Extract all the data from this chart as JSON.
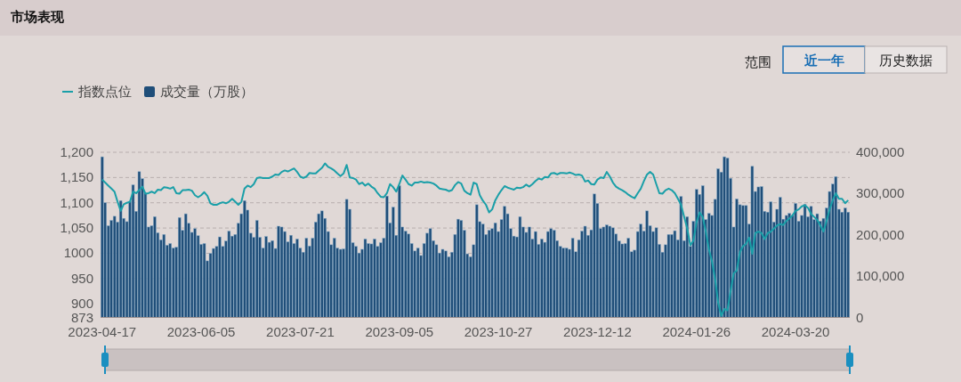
{
  "chart_data": {
    "type": "bar",
    "title": "市场表现",
    "annotations": [
      "范围",
      "近一年",
      "历史数据"
    ],
    "categories": [
      "2023-04-17",
      null,
      null,
      null,
      null,
      null,
      null,
      null,
      null,
      null,
      null,
      null,
      null,
      null,
      null,
      null,
      null,
      null,
      null,
      null,
      null,
      null,
      null,
      null,
      null,
      null,
      null,
      null,
      null,
      null,
      null,
      null,
      "2023-06-05",
      null,
      null,
      null,
      null,
      null,
      null,
      null,
      null,
      null,
      null,
      null,
      null,
      null,
      null,
      null,
      null,
      null,
      null,
      null,
      null,
      null,
      null,
      null,
      null,
      null,
      null,
      null,
      null,
      null,
      null,
      null,
      "2023-07-21",
      null,
      null,
      null,
      null,
      null,
      null,
      null,
      null,
      null,
      null,
      null,
      null,
      null,
      null,
      null,
      null,
      null,
      null,
      null,
      null,
      null,
      null,
      null,
      null,
      null,
      null,
      null,
      null,
      null,
      null,
      null,
      "2023-09-05",
      null,
      null,
      null,
      null,
      null,
      null,
      null,
      null,
      null,
      null,
      null,
      null,
      null,
      null,
      null,
      null,
      null,
      null,
      null,
      null,
      null,
      null,
      null,
      null,
      null,
      null,
      null,
      null,
      null,
      null,
      null,
      "2023-10-27",
      null,
      null,
      null,
      null,
      null,
      null,
      null,
      null,
      null,
      null,
      null,
      null,
      null,
      null,
      null,
      null,
      null,
      null,
      null,
      null,
      null,
      null,
      null,
      null,
      null,
      null,
      null,
      null,
      null,
      null,
      null,
      "2023-12-12",
      null,
      null,
      null,
      null,
      null,
      null,
      null,
      null,
      null,
      null,
      null,
      null,
      null,
      null,
      null,
      null,
      null,
      null,
      null,
      null,
      null,
      null,
      null,
      null,
      null,
      null,
      null,
      null,
      null,
      null,
      null,
      "2024-01-26",
      null,
      null,
      null,
      null,
      null,
      null,
      null,
      null,
      null,
      null,
      null,
      null,
      null,
      null,
      null,
      null,
      null,
      null,
      null,
      null,
      null,
      null,
      null,
      null,
      null,
      null,
      null,
      null,
      null,
      null,
      null,
      "2024-03-20",
      null,
      null,
      null,
      null,
      null,
      null,
      null,
      null,
      null,
      null,
      null,
      null,
      null,
      null,
      null,
      null,
      null
    ],
    "series": [
      {
        "name": "指数点位",
        "type": "line",
        "color": "#1a9fa8",
        "values": [
          1146,
          1140,
          1134,
          1128,
          1122,
          1102,
          1084,
          1097,
          1100,
          1102,
          1122,
          1119,
          1125,
          1132,
          1118,
          1119,
          1122,
          1119,
          1126,
          1125,
          1131,
          1130,
          1128,
          1131,
          1119,
          1118,
          1125,
          1125,
          1126,
          1124,
          1115,
          1111,
          1115,
          1121,
          1114,
          1099,
          1096,
          1096,
          1099,
          1101,
          1099,
          1102,
          1108,
          1102,
          1096,
          1102,
          1128,
          1134,
          1131,
          1137,
          1149,
          1150,
          1149,
          1149,
          1149,
          1152,
          1156,
          1155,
          1161,
          1164,
          1162,
          1165,
          1168,
          1161,
          1152,
          1149,
          1152,
          1159,
          1158,
          1158,
          1164,
          1169,
          1178,
          1171,
          1168,
          1164,
          1158,
          1153,
          1158,
          1175,
          1150,
          1149,
          1146,
          1137,
          1140,
          1134,
          1138,
          1132,
          1128,
          1119,
          1112,
          1111,
          1119,
          1137,
          1131,
          1122,
          1137,
          1154,
          1146,
          1137,
          1134,
          1140,
          1140,
          1142,
          1140,
          1141,
          1140,
          1138,
          1134,
          1128,
          1127,
          1126,
          1123,
          1125,
          1135,
          1141,
          1138,
          1124,
          1119,
          1116,
          1140,
          1137,
          1115,
          1104,
          1096,
          1081,
          1087,
          1105,
          1116,
          1125,
          1133,
          1130,
          1128,
          1126,
          1130,
          1129,
          1131,
          1136,
          1132,
          1137,
          1143,
          1148,
          1146,
          1151,
          1150,
          1158,
          1159,
          1156,
          1159,
          1159,
          1158,
          1160,
          1158,
          1155,
          1156,
          1154,
          1142,
          1144,
          1137,
          1136,
          1146,
          1150,
          1149,
          1161,
          1152,
          1140,
          1132,
          1128,
          1125,
          1121,
          1116,
          1112,
          1109,
          1119,
          1128,
          1143,
          1156,
          1161,
          1156,
          1137,
          1119,
          1118,
          1125,
          1128,
          1125,
          1119,
          1108,
          1096,
          1072,
          1049,
          1016,
          1025,
          1061,
          1081,
          1072,
          1043,
          1008,
          984,
          949,
          902,
          876,
          890,
          887,
          925,
          960,
          966,
          1002,
          1014,
          1019,
          1031,
          999,
          1040,
          1043,
          1040,
          1028,
          1040,
          1043,
          1049,
          1055,
          1058,
          1056,
          1064,
          1069,
          1075,
          1084,
          1087,
          1093,
          1095,
          1090,
          1078,
          1072,
          1066,
          1055,
          1043,
          1064,
          1087,
          1105,
          1119,
          1108,
          1108,
          1099,
          1105
        ]
      },
      {
        "name": "成交量（万股）",
        "axis": "y2",
        "color": "#1f4e79",
        "values": [
          389000,
          278000,
          222000,
          235000,
          245000,
          231000,
          283000,
          240000,
          232000,
          281000,
          321000,
          257000,
          353000,
          336000,
          301000,
          219000,
          222000,
          244000,
          205000,
          188000,
          201000,
          175000,
          179000,
          168000,
          170000,
          242000,
          211000,
          251000,
          228000,
          206000,
          215000,
          198000,
          177000,
          179000,
          137000,
          155000,
          167000,
          172000,
          195000,
          172000,
          185000,
          209000,
          197000,
          201000,
          228000,
          251000,
          283000,
          260000,
          204000,
          194000,
          235000,
          194000,
          168000,
          196000,
          182000,
          186000,
          167000,
          221000,
          219000,
          208000,
          183000,
          199000,
          179000,
          190000,
          168000,
          158000,
          192000,
          173000,
          192000,
          231000,
          251000,
          258000,
          240000,
          208000,
          176000,
          192000,
          168000,
          165000,
          166000,
          286000,
          262000,
          181000,
          172000,
          156000,
          165000,
          190000,
          179000,
          178000,
          190000,
          172000,
          181000,
          192000,
          294000,
          229000,
          267000,
          199000,
          319000,
          219000,
          209000,
          202000,
          179000,
          161000,
          168000,
          150000,
          179000,
          204000,
          215000,
          186000,
          176000,
          156000,
          165000,
          161000,
          147000,
          158000,
          201000,
          238000,
          235000,
          211000,
          154000,
          147000,
          176000,
          273000,
          232000,
          226000,
          201000,
          211000,
          215000,
          229000,
          208000,
          237000,
          269000,
          251000,
          215000,
          197000,
          195000,
          244000,
          219000,
          206000,
          219000,
          190000,
          208000,
          177000,
          190000,
          182000,
          208000,
          215000,
          211000,
          186000,
          172000,
          168000,
          168000,
          165000,
          192000,
          159000,
          188000,
          209000,
          221000,
          199000,
          212000,
          299000,
          276000,
          215000,
          219000,
          224000,
          221000,
          217000,
          202000,
          185000,
          178000,
          179000,
          192000,
          159000,
          163000,
          208000,
          226000,
          209000,
          258000,
          222000,
          208000,
          217000,
          177000,
          158000,
          176000,
          201000,
          201000,
          210000,
          188000,
          293000,
          186000,
          244000,
          172000,
          233000,
          310000,
          298000,
          319000,
          237000,
          252000,
          247000,
          286000,
          360000,
          352000,
          389000,
          386000,
          337000,
          219000,
          287000,
          273000,
          271000,
          271000,
          226000,
          366000,
          305000,
          316000,
          317000,
          257000,
          255000,
          280000,
          231000,
          262000,
          291000,
          238000,
          247000,
          252000,
          247000,
          276000,
          233000,
          247000,
          274000,
          244000,
          269000,
          237000,
          251000,
          233000,
          240000,
          265000,
          305000,
          323000,
          341000,
          262000,
          255000,
          265000,
          255000
        ]
      }
    ],
    "ylim": [
      873,
      1200
    ],
    "yticks": [
      873,
      900,
      950,
      1000,
      {
        "value": 1050,
        "label": "1,050"
      },
      {
        "value": 1100,
        "label": "1,100"
      },
      {
        "value": 1150,
        "label": "1,150"
      },
      {
        "value": 1200,
        "label": "1,200"
      }
    ],
    "y2lim": [
      0,
      400000
    ],
    "y2ticks": [
      0,
      {
        "value": 100000,
        "label": "100,000"
      },
      {
        "value": 200000,
        "label": "200,000"
      },
      {
        "value": 300000,
        "label": "300,000"
      },
      {
        "value": 400000,
        "label": "400,000"
      }
    ],
    "grid": "y",
    "legend": "top left",
    "marker": "none"
  }
}
